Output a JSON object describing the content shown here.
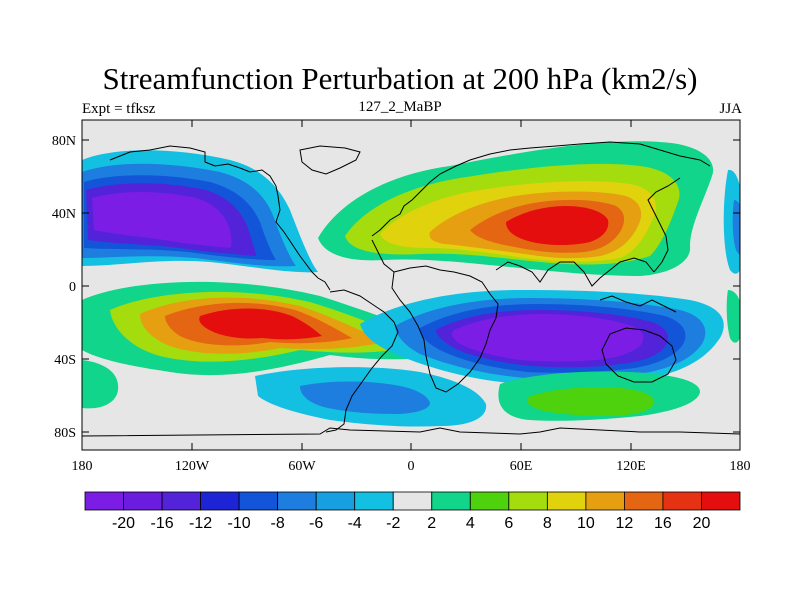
{
  "title": "Streamfunction Perturbation at 200 hPa (km2/s)",
  "left_string": "Expt = tfksz",
  "center_string": "127_2_MaBP",
  "right_string": "JJA",
  "lon_ticks": [
    "180",
    "120W",
    "60W",
    "0",
    "60E",
    "120E",
    "180"
  ],
  "lat_ticks": [
    "80N",
    "40N",
    "0",
    "40S",
    "80S"
  ],
  "colorbar": {
    "labels": [
      "-20",
      "-16",
      "-12",
      "-10",
      "-8",
      "-6",
      "-4",
      "-2",
      "2",
      "4",
      "6",
      "8",
      "10",
      "12",
      "16",
      "20"
    ],
    "colors": [
      "#7c1de6",
      "#6a1ddf",
      "#5223d9",
      "#1d24d6",
      "#1355d8",
      "#1d7ee0",
      "#16a0e1",
      "#14c0e2",
      "#e6e6e6",
      "#10d58a",
      "#4ed20e",
      "#a4dc0d",
      "#e0d20d",
      "#e59f10",
      "#e56612",
      "#e53212",
      "#e50e0e"
    ]
  },
  "colors": {
    "background_field": "#e6e6e6",
    "coastline": "#000000"
  }
}
